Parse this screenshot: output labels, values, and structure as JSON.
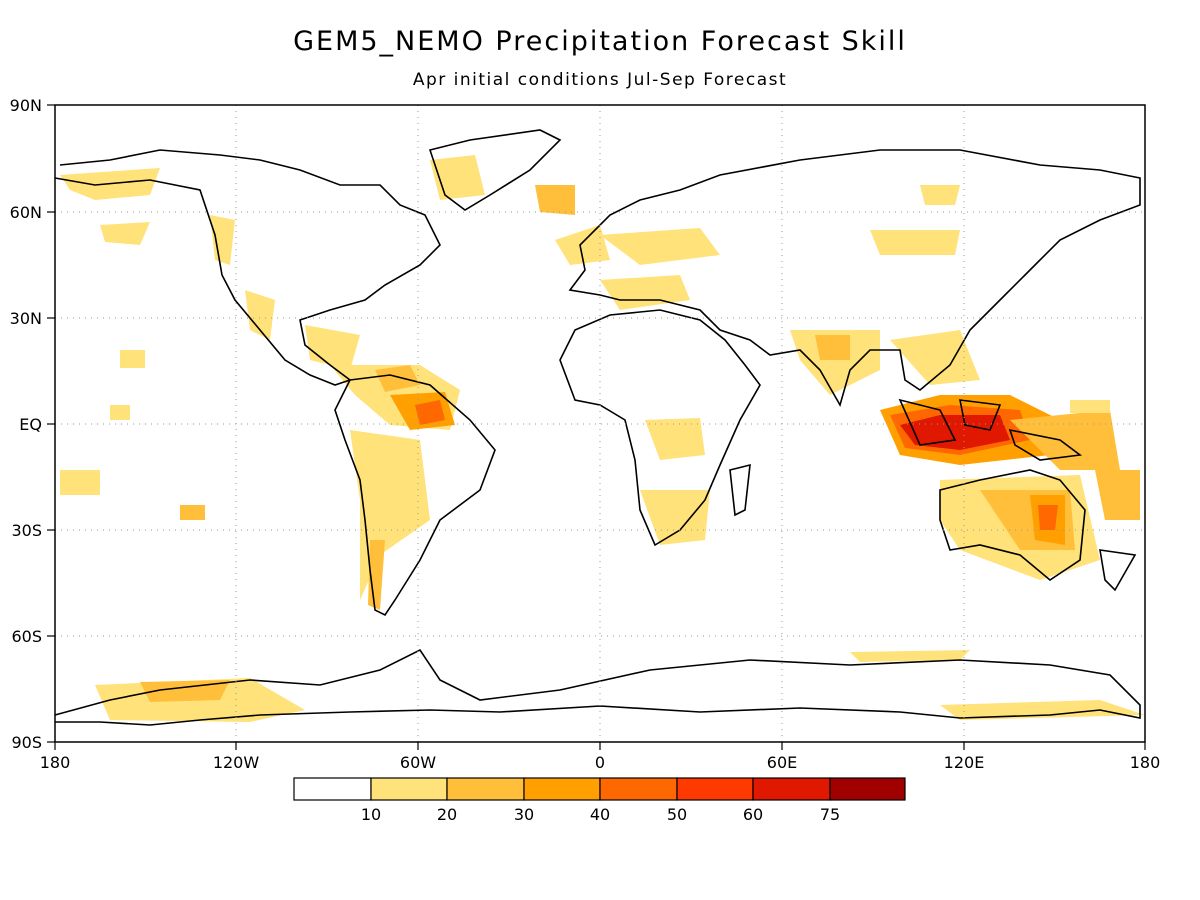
{
  "title": "GEM5_NEMO Precipitation Forecast Skill",
  "subtitle": "Apr initial conditions   Jul-Sep Forecast",
  "lat_labels": [
    "90N",
    "60N",
    "30N",
    "EQ",
    "30S",
    "60S",
    "90S"
  ],
  "lon_labels": [
    "180",
    "120W",
    "60W",
    "0",
    "60E",
    "120E",
    "180"
  ],
  "colorbar": {
    "ticks": [
      "10",
      "20",
      "30",
      "40",
      "50",
      "60",
      "75"
    ],
    "colors": [
      "#ffffff",
      "#ffe27a",
      "#ffbf3a",
      "#ffa000",
      "#ff6800",
      "#ff3a00",
      "#e01800",
      "#a00000"
    ]
  },
  "regions_colors": {
    "c10": "#ffe27a",
    "c20": "#ffbf3a",
    "c30": "#ffa000",
    "c40": "#ff6800",
    "c50": "#ff3a00",
    "c60": "#e01800"
  }
}
